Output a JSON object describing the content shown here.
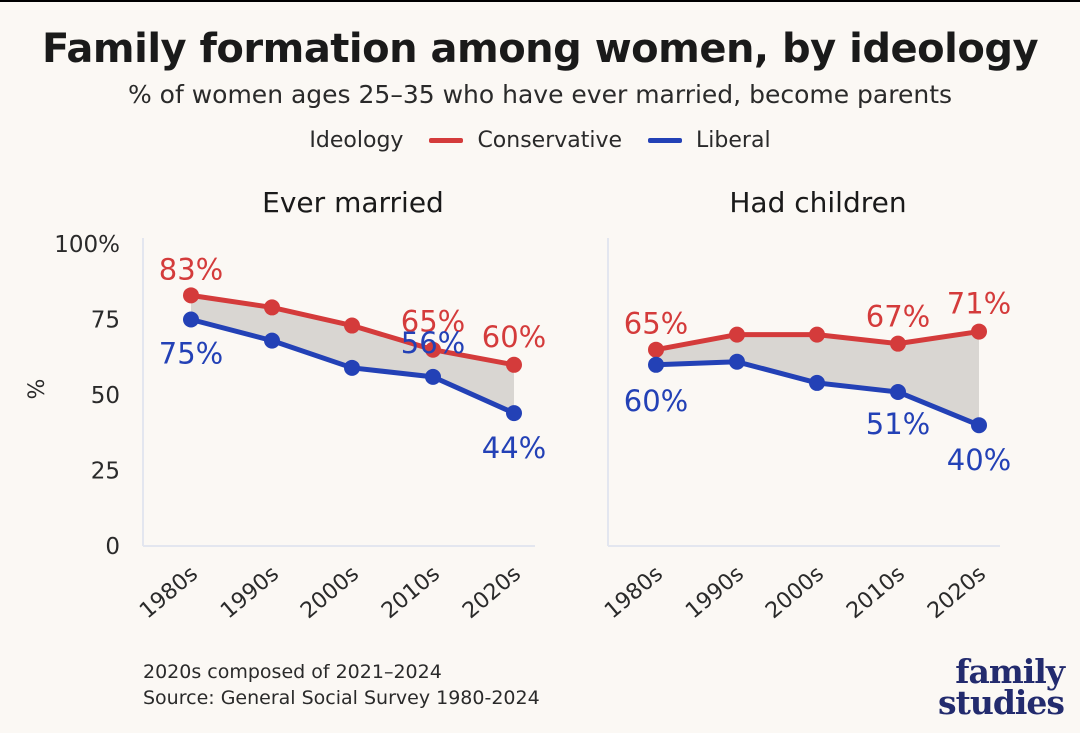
{
  "title": "Family formation among women, by ideology",
  "subtitle": "% of women ages 25–35 who have ever married, become parents",
  "legend": {
    "label": "Ideology",
    "items": [
      {
        "name": "Conservative",
        "color": "#d43b3b"
      },
      {
        "name": "Liberal",
        "color": "#2341b6"
      }
    ]
  },
  "footnote": {
    "line1": "2020s composed of 2021–2024",
    "line2": "Source: General Social Survey 1980-2024"
  },
  "brand": {
    "line1": "family",
    "line2": "studies"
  },
  "chart_data": [
    {
      "type": "line",
      "title": "Ever married",
      "ylabel": "%",
      "categories": [
        "1980s",
        "1990s",
        "2000s",
        "2010s",
        "2020s"
      ],
      "ylim": [
        0,
        100
      ],
      "yticks": [
        "0",
        "25",
        "50",
        "75",
        "100%"
      ],
      "grid": false,
      "gap_fill": "#d9d6d2",
      "series": [
        {
          "name": "Conservative",
          "color": "#d43b3b",
          "values": [
            83,
            79,
            73,
            65,
            60
          ],
          "labels": [
            "83%",
            null,
            null,
            "65%",
            "60%"
          ]
        },
        {
          "name": "Liberal",
          "color": "#2341b6",
          "values": [
            75,
            68,
            59,
            56,
            44
          ],
          "labels": [
            "75%",
            null,
            null,
            "56%",
            "44%"
          ]
        }
      ]
    },
    {
      "type": "line",
      "title": "Had children",
      "categories": [
        "1980s",
        "1990s",
        "2000s",
        "2010s",
        "2020s"
      ],
      "ylim": [
        0,
        100
      ],
      "grid": false,
      "gap_fill": "#d9d6d2",
      "series": [
        {
          "name": "Conservative",
          "color": "#d43b3b",
          "values": [
            65,
            70,
            70,
            67,
            71
          ],
          "labels": [
            "65%",
            null,
            null,
            "67%",
            "71%"
          ]
        },
        {
          "name": "Liberal",
          "color": "#2341b6",
          "values": [
            60,
            61,
            54,
            51,
            40
          ],
          "labels": [
            "60%",
            null,
            null,
            "51%",
            "40%"
          ]
        }
      ]
    }
  ]
}
